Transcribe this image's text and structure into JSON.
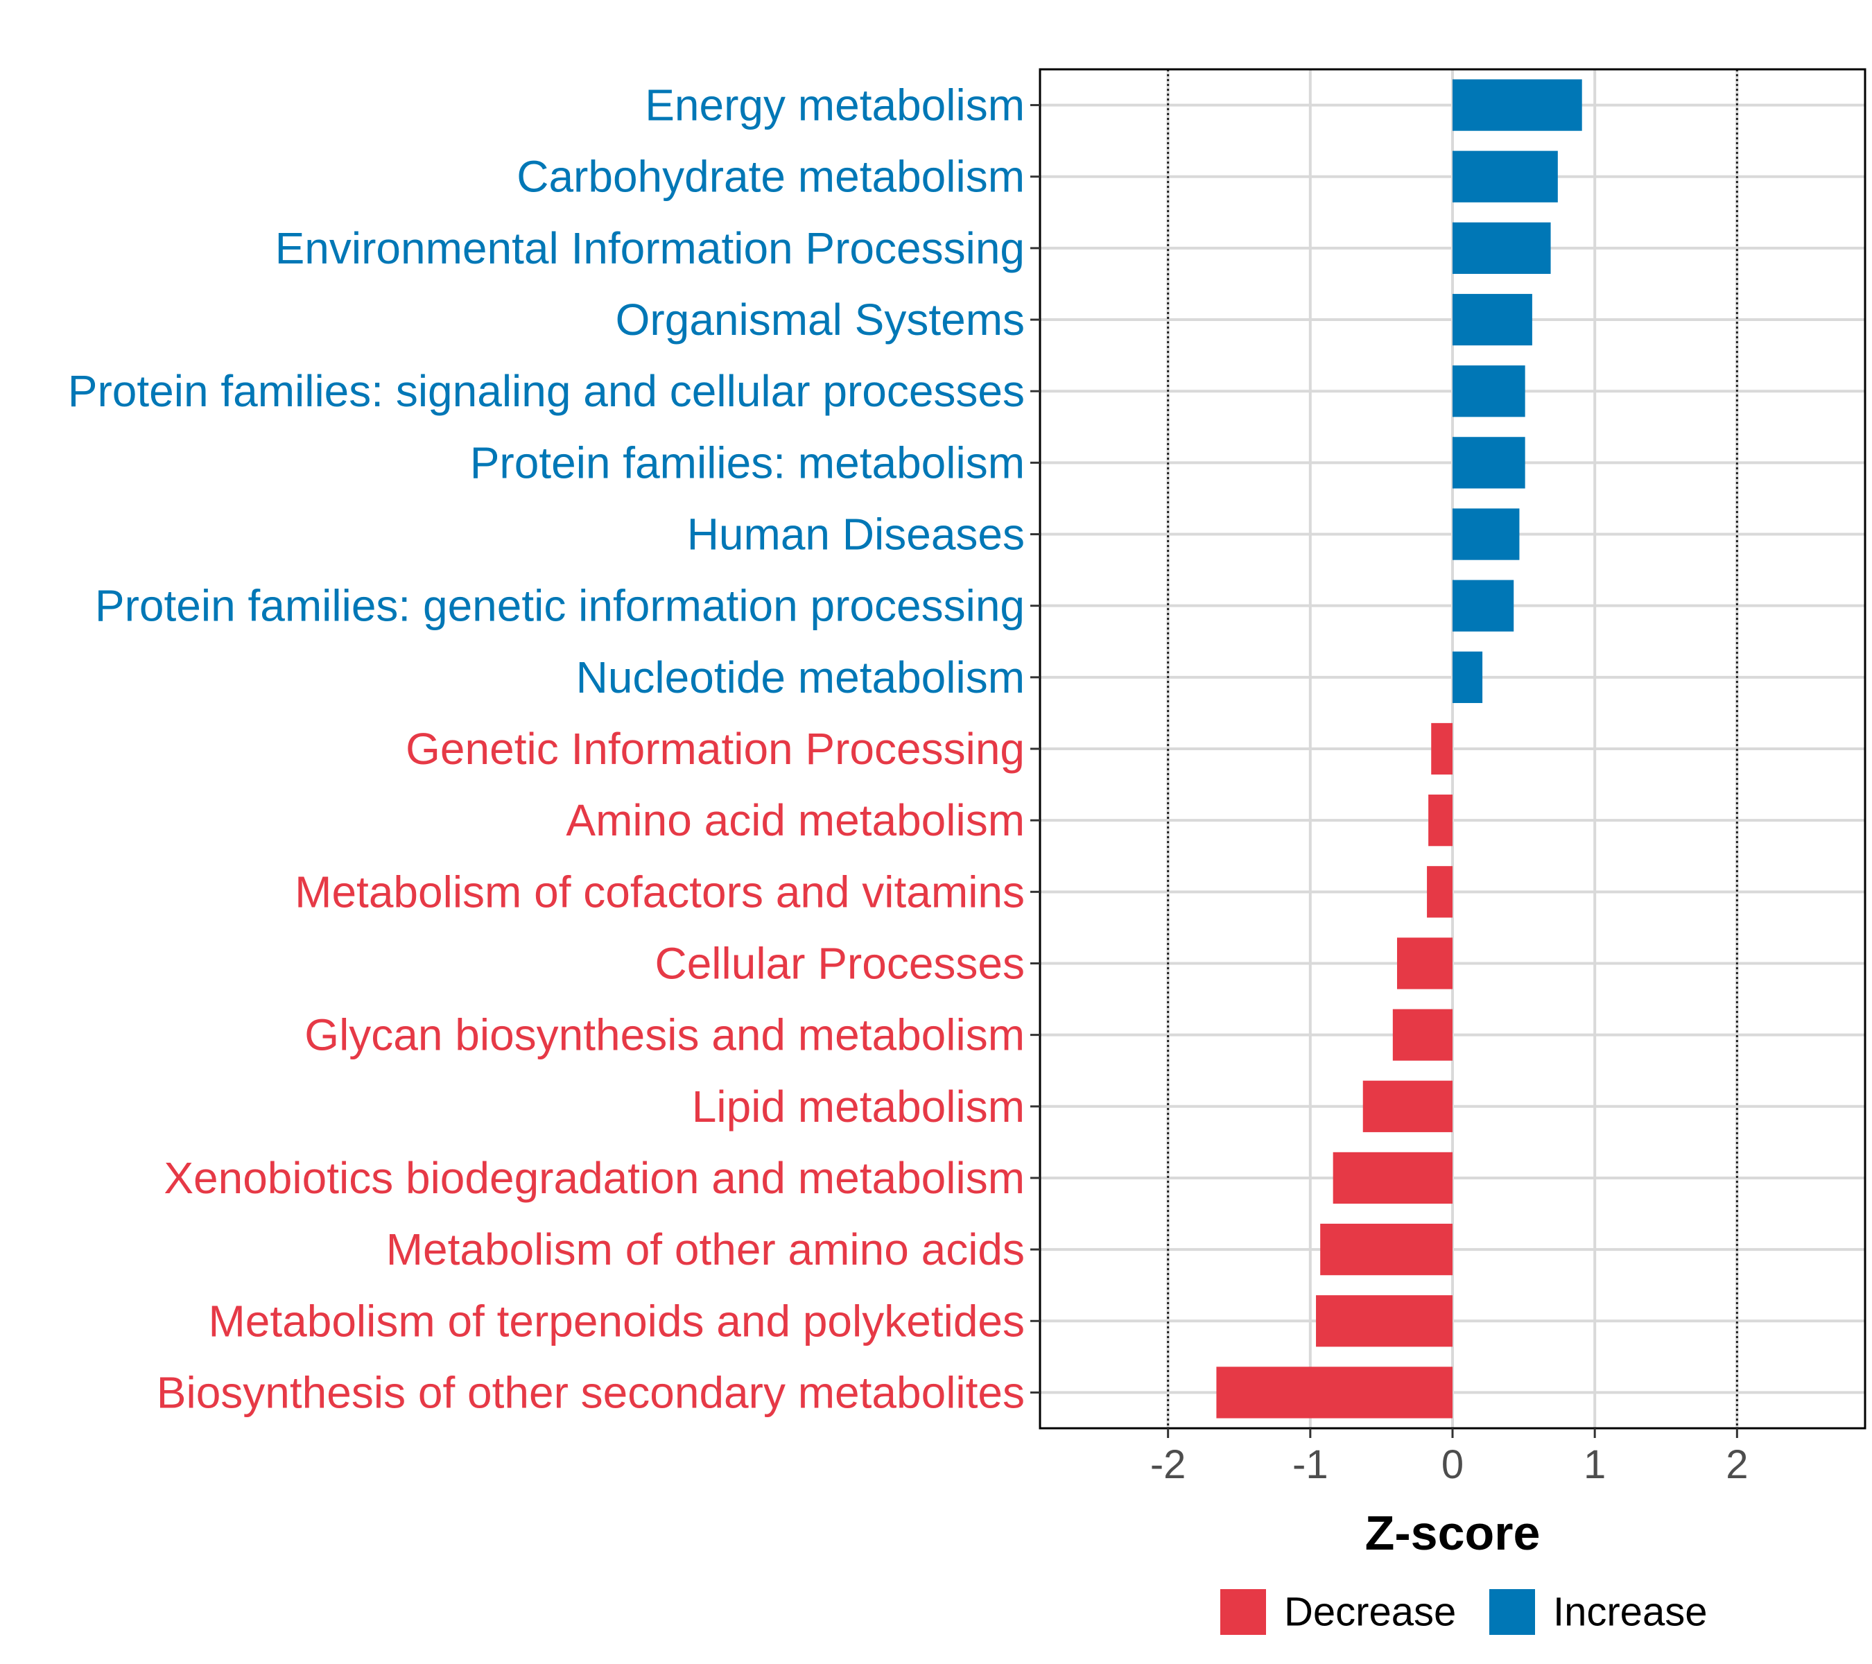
{
  "chart_data": {
    "type": "bar",
    "orientation": "horizontal",
    "title": "",
    "xlabel": "Z-score",
    "ylabel": "",
    "xlim": [
      -2.9,
      2.9
    ],
    "xticks": [
      -2,
      -1,
      0,
      1,
      2
    ],
    "xtick_labels": [
      "-2",
      "-1",
      "0",
      "1",
      "2"
    ],
    "reference_lines": [
      -2,
      2
    ],
    "grid": true,
    "legend_position": "bottom",
    "colors": {
      "Decrease": "#e63946",
      "Increase": "#0077b6"
    },
    "legend": [
      {
        "name": "Decrease",
        "color": "#e63946"
      },
      {
        "name": "Increase",
        "color": "#0077b6"
      }
    ],
    "categories": [
      "Energy metabolism",
      "Carbohydrate metabolism",
      "Environmental Information Processing",
      "Organismal Systems",
      "Protein families: signaling and cellular processes",
      "Protein families: metabolism",
      "Human Diseases",
      "Protein families: genetic information processing",
      "Nucleotide metabolism",
      "Genetic Information Processing",
      "Amino acid metabolism",
      "Metabolism of cofactors and vitamins",
      "Cellular Processes",
      "Glycan biosynthesis and metabolism",
      "Lipid metabolism",
      "Xenobiotics biodegradation and metabolism",
      "Metabolism of other amino acids",
      "Metabolism of terpenoids and polyketides",
      "Biosynthesis of other secondary metabolites"
    ],
    "values": [
      0.91,
      0.74,
      0.69,
      0.56,
      0.51,
      0.51,
      0.47,
      0.43,
      0.21,
      -0.15,
      -0.17,
      -0.18,
      -0.39,
      -0.42,
      -0.63,
      -0.84,
      -0.93,
      -0.96,
      -1.66
    ],
    "groups": [
      "Increase",
      "Increase",
      "Increase",
      "Increase",
      "Increase",
      "Increase",
      "Increase",
      "Increase",
      "Increase",
      "Decrease",
      "Decrease",
      "Decrease",
      "Decrease",
      "Decrease",
      "Decrease",
      "Decrease",
      "Decrease",
      "Decrease",
      "Decrease"
    ]
  }
}
